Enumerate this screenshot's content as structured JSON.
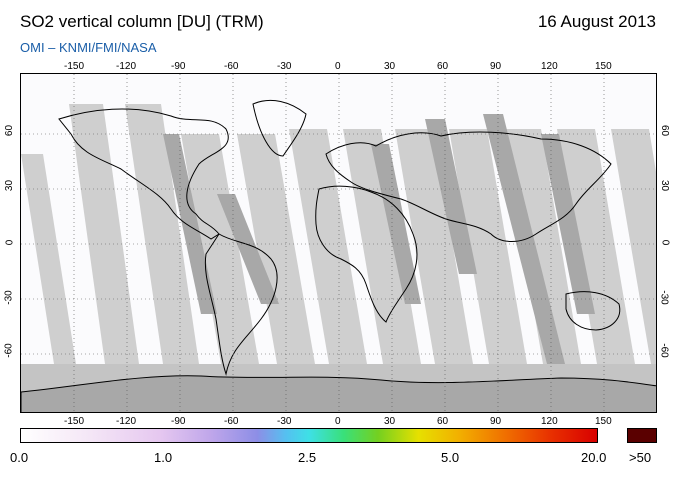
{
  "header": {
    "title": "SO2 vertical column [DU] (TRM)",
    "date": "16 August 2013",
    "credit": "OMI  –  KNMI/FMI/NASA"
  },
  "map": {
    "lon_ticks": [
      "-150",
      "-120",
      "-90",
      "-60",
      "-30",
      "0",
      "30",
      "60",
      "90",
      "120",
      "150"
    ],
    "lat_ticks": [
      "60",
      "30",
      "0",
      "-30",
      "-60"
    ],
    "grid": "dotted",
    "no_data_color": "#c8c8c8"
  },
  "colorbar": {
    "labels": [
      "0.0",
      "1.0",
      "2.5",
      "5.0",
      "20.0"
    ],
    "over_label": ">50",
    "over_color": "#5a0000"
  }
}
